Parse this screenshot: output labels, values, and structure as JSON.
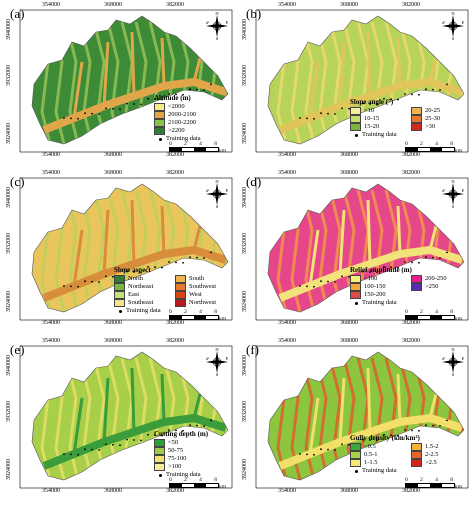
{
  "coords": {
    "x_top": [
      "354000",
      "368000",
      "382000"
    ],
    "y_left": [
      "3940000",
      "3932000",
      "3924000"
    ]
  },
  "scale": {
    "ticks": [
      "0",
      "2",
      "4",
      "8"
    ],
    "unit": "km"
  },
  "compass": {
    "labels": [
      "N",
      "S",
      "W",
      "E"
    ]
  },
  "training_label": "Training data",
  "panels": [
    {
      "letter": "(a)",
      "legend_title": "Altitude (m)",
      "legend_columns": 1,
      "classes": [
        {
          "label": "<2000",
          "color": "#f4ec8a"
        },
        {
          "label": "2000-2100",
          "color": "#e3a445"
        },
        {
          "label": "2100-2200",
          "color": "#8bc34a"
        },
        {
          "label": ">2200",
          "color": "#2e7d32"
        }
      ],
      "base_color": "#3d8b37",
      "valley_color": "#e2a64a",
      "ridge_color": "#9bc45a"
    },
    {
      "letter": "(b)",
      "legend_title": "Slope angle (°)",
      "legend_columns": 2,
      "classes": [
        {
          "label": "<10",
          "color": "#f3ee9b"
        },
        {
          "label": "20-25",
          "color": "#f0b44c"
        },
        {
          "label": "10-15",
          "color": "#c8dd6a"
        },
        {
          "label": "25-30",
          "color": "#e8782f"
        },
        {
          "label": "15-20",
          "color": "#7fb53c"
        },
        {
          "label": ">30",
          "color": "#d02a1e"
        }
      ],
      "base_color": "#b7d45a",
      "valley_color": "#e0c65a",
      "ridge_color": "#f0d870"
    },
    {
      "letter": "(c)",
      "legend_title": "Slope aspect",
      "legend_columns": 2,
      "classes": [
        {
          "label": "North",
          "color": "#2e7d32"
        },
        {
          "label": "South",
          "color": "#f0b44c"
        },
        {
          "label": "Northeast",
          "color": "#7cb342"
        },
        {
          "label": "Southwest",
          "color": "#e8782f"
        },
        {
          "label": "East",
          "color": "#c5e17a"
        },
        {
          "label": "West",
          "color": "#d84315"
        },
        {
          "label": "Southeast",
          "color": "#f4e58a"
        },
        {
          "label": "Northwest",
          "color": "#b71c1c"
        }
      ],
      "base_color": "#e9c65c",
      "valley_color": "#d78d3b",
      "ridge_color": "#b9cf5e"
    },
    {
      "letter": "(d)",
      "legend_title": "Relief amplitude (m)",
      "legend_columns": 2,
      "classes": [
        {
          "label": "<100",
          "color": "#f4ee7a"
        },
        {
          "label": "200-250",
          "color": "#e91e8c"
        },
        {
          "label": "100-150",
          "color": "#f2a93b"
        },
        {
          "label": ">250",
          "color": "#5b2bb5"
        },
        {
          "label": "150-200",
          "color": "#e34a4a"
        }
      ],
      "base_color": "#e6478a",
      "valley_color": "#f2e27a",
      "ridge_color": "#f29b45"
    },
    {
      "letter": "(e)",
      "legend_title": "Cutting depth (m)",
      "legend_columns": 1,
      "classes": [
        {
          "label": "<50",
          "color": "#2e9e3a"
        },
        {
          "label": "50-75",
          "color": "#9ccc4a"
        },
        {
          "label": "75-100",
          "color": "#f2e46a"
        },
        {
          "label": ">100",
          "color": "#f5ef9a"
        }
      ],
      "base_color": "#a8cf4a",
      "valley_color": "#3a9c3a",
      "ridge_color": "#e8e06a"
    },
    {
      "letter": "(f)",
      "legend_title": "Gully density  (km/km²)",
      "legend_columns": 2,
      "classes": [
        {
          "label": "<0.5",
          "color": "#3aa83a"
        },
        {
          "label": "1.5-2",
          "color": "#f2b23c"
        },
        {
          "label": "0.5-1",
          "color": "#a6d24a"
        },
        {
          "label": "2-2.5",
          "color": "#e8652a"
        },
        {
          "label": "1-1.5",
          "color": "#f3ea72"
        },
        {
          "label": ">2.5",
          "color": "#d4241c"
        }
      ],
      "base_color": "#8cc63f",
      "valley_color": "#f2e06a",
      "ridge_color": "#e4572a"
    }
  ]
}
